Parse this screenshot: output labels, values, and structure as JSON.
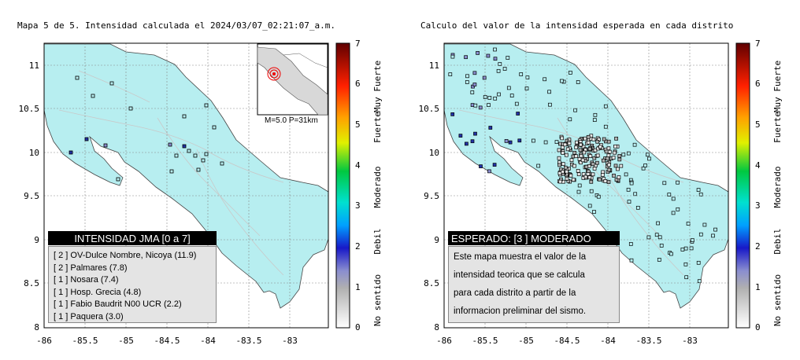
{
  "left": {
    "title": "Mapa 5 de 5. Intensidad calculada el 2024/03/07_02:21:07_a.m.",
    "inset_note": "M=5.0 P=31km",
    "legend_title": "INTENSIDAD JMA [0 a 7]",
    "stations": [
      {
        "level": "[ 2 ]",
        "name": "OV-Dulce Nombre, Nicoya (11.9)"
      },
      {
        "level": "[ 2 ]",
        "name": "Palmares (7.8)"
      },
      {
        "level": "[ 1 ]",
        "name": "Nosara (7.4)"
      },
      {
        "level": "[ 1 ]",
        "name": "Hosp. Grecia (4.8)"
      },
      {
        "level": "[ 1 ]",
        "name": "Fabio Baudrit N00 UCR (2.2)"
      },
      {
        "level": "[ 1 ]",
        "name": "Paquera (3.0)"
      }
    ]
  },
  "right": {
    "title": "Calculo del valor de la intensidad esperada en cada distrito",
    "box_title": "ESPERADO: [3 ] MODERADO",
    "box_text": [
      "Este mapa muestra el valor de la",
      "intensidad teorica que se calcula",
      "para cada distrito a partir de la",
      "informacion preliminar del sismo."
    ]
  },
  "axes": {
    "x_ticks": [
      "-86",
      "-85.5",
      "-85",
      "-84.5",
      "-84",
      "-83.5",
      "-83"
    ],
    "y_ticks": [
      "11",
      "10.5",
      "10",
      "9.5",
      "9",
      "8.5",
      "8"
    ]
  },
  "colorbar": {
    "ticks": [
      "7",
      "6",
      "5",
      "4",
      "3",
      "2",
      "1",
      "0"
    ],
    "labels": [
      "Muy Fuerte",
      "Fuerte",
      "Moderado",
      "Debil",
      "No sentido"
    ]
  },
  "colors": {
    "land": "#b7eef0",
    "ocean": "#ffffff",
    "low": "#2232a8",
    "mid": "#8a8ecf"
  }
}
